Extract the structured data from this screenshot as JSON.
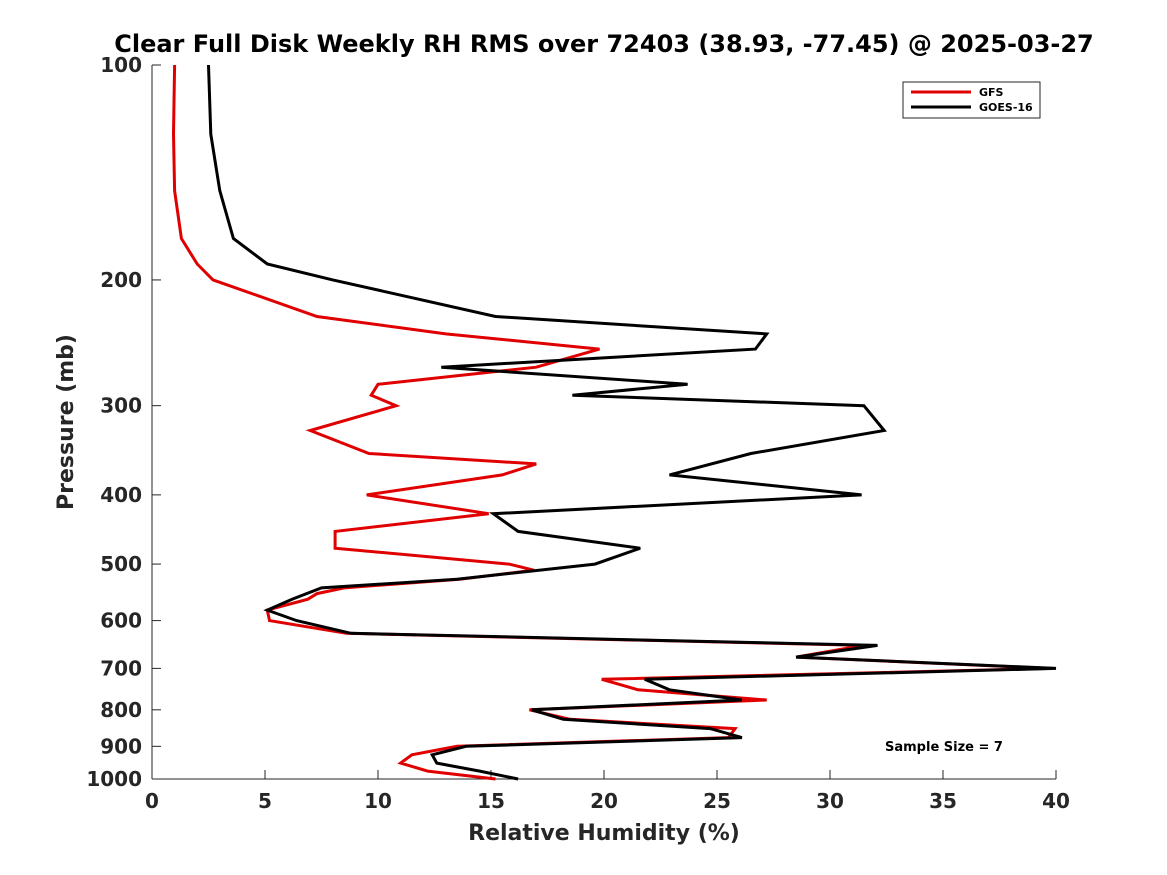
{
  "chart_data": {
    "type": "line",
    "title": "Clear Full Disk Weekly RH RMS over 72403 (38.93, -77.45) @ 2025-03-27",
    "xlabel": "Relative Humidity (%)",
    "ylabel": "Pressure (mb)",
    "xlim": [
      0,
      40
    ],
    "ylim": [
      100,
      1000
    ],
    "y_scale": "log",
    "y_reversed": true,
    "xticks": [
      0,
      5,
      10,
      15,
      20,
      25,
      30,
      35,
      40
    ],
    "yticks": [
      100,
      200,
      300,
      400,
      500,
      600,
      700,
      800,
      900,
      1000
    ],
    "legend_position": "top-right",
    "annotation": "Sample Size = 7",
    "series": [
      {
        "name": "GFS",
        "color": "#e00000",
        "points": [
          [
            1.0,
            100
          ],
          [
            0.95,
            125
          ],
          [
            1.0,
            150
          ],
          [
            1.3,
            175
          ],
          [
            2.0,
            190
          ],
          [
            2.7,
            200
          ],
          [
            7.3,
            225
          ],
          [
            13.0,
            238
          ],
          [
            19.8,
            250
          ],
          [
            17.0,
            265
          ],
          [
            10.0,
            280
          ],
          [
            9.7,
            290
          ],
          [
            10.8,
            300
          ],
          [
            7.0,
            325
          ],
          [
            9.6,
            350
          ],
          [
            17.0,
            362
          ],
          [
            15.5,
            375
          ],
          [
            9.5,
            400
          ],
          [
            14.9,
            425
          ],
          [
            8.1,
            450
          ],
          [
            8.1,
            475
          ],
          [
            15.8,
            500
          ],
          [
            16.9,
            510
          ],
          [
            13.6,
            525
          ],
          [
            8.5,
            540
          ],
          [
            7.3,
            550
          ],
          [
            6.9,
            560
          ],
          [
            5.1,
            580
          ],
          [
            5.2,
            600
          ],
          [
            8.6,
            625
          ],
          [
            31.5,
            650
          ],
          [
            28.5,
            675
          ],
          [
            39.8,
            700
          ],
          [
            19.9,
            725
          ],
          [
            21.5,
            750
          ],
          [
            27.2,
            775
          ],
          [
            16.7,
            800
          ],
          [
            18.5,
            825
          ],
          [
            25.8,
            850
          ],
          [
            25.5,
            875
          ],
          [
            13.5,
            900
          ],
          [
            11.5,
            925
          ],
          [
            11.0,
            950
          ],
          [
            12.2,
            975
          ],
          [
            15.2,
            1000
          ]
        ]
      },
      {
        "name": "GOES-16",
        "color": "#000000",
        "points": [
          [
            2.5,
            100
          ],
          [
            2.6,
            125
          ],
          [
            3.0,
            150
          ],
          [
            3.6,
            175
          ],
          [
            5.1,
            190
          ],
          [
            8.0,
            200
          ],
          [
            15.2,
            225
          ],
          [
            27.2,
            238
          ],
          [
            26.7,
            250
          ],
          [
            12.8,
            265
          ],
          [
            23.7,
            280
          ],
          [
            18.6,
            290
          ],
          [
            31.5,
            300
          ],
          [
            32.4,
            325
          ],
          [
            26.5,
            350
          ],
          [
            22.9,
            375
          ],
          [
            31.4,
            400
          ],
          [
            15.1,
            425
          ],
          [
            16.2,
            450
          ],
          [
            21.6,
            475
          ],
          [
            19.6,
            500
          ],
          [
            13.5,
            525
          ],
          [
            7.5,
            540
          ],
          [
            6.2,
            560
          ],
          [
            5.1,
            580
          ],
          [
            6.4,
            600
          ],
          [
            8.8,
            625
          ],
          [
            32.1,
            650
          ],
          [
            28.5,
            675
          ],
          [
            40.0,
            700
          ],
          [
            21.8,
            725
          ],
          [
            22.9,
            750
          ],
          [
            26.1,
            775
          ],
          [
            16.8,
            800
          ],
          [
            18.2,
            825
          ],
          [
            24.7,
            850
          ],
          [
            26.1,
            875
          ],
          [
            13.9,
            900
          ],
          [
            12.4,
            925
          ],
          [
            12.6,
            950
          ],
          [
            14.5,
            975
          ],
          [
            16.2,
            1000
          ]
        ]
      }
    ]
  }
}
